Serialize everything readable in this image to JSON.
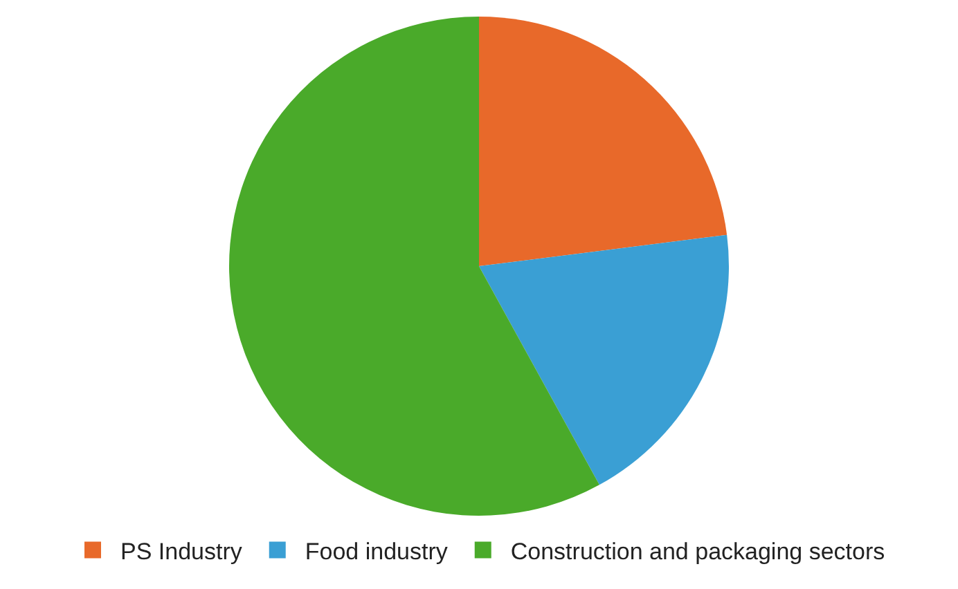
{
  "chart_data": {
    "type": "pie",
    "categories": [
      "PS Industry",
      "Food industry",
      "Construction and packaging sectors"
    ],
    "values": [
      23,
      19,
      58
    ],
    "colors": [
      "#e8692a",
      "#3a9fd4",
      "#4aaa2a"
    ],
    "legend": "bottom"
  }
}
